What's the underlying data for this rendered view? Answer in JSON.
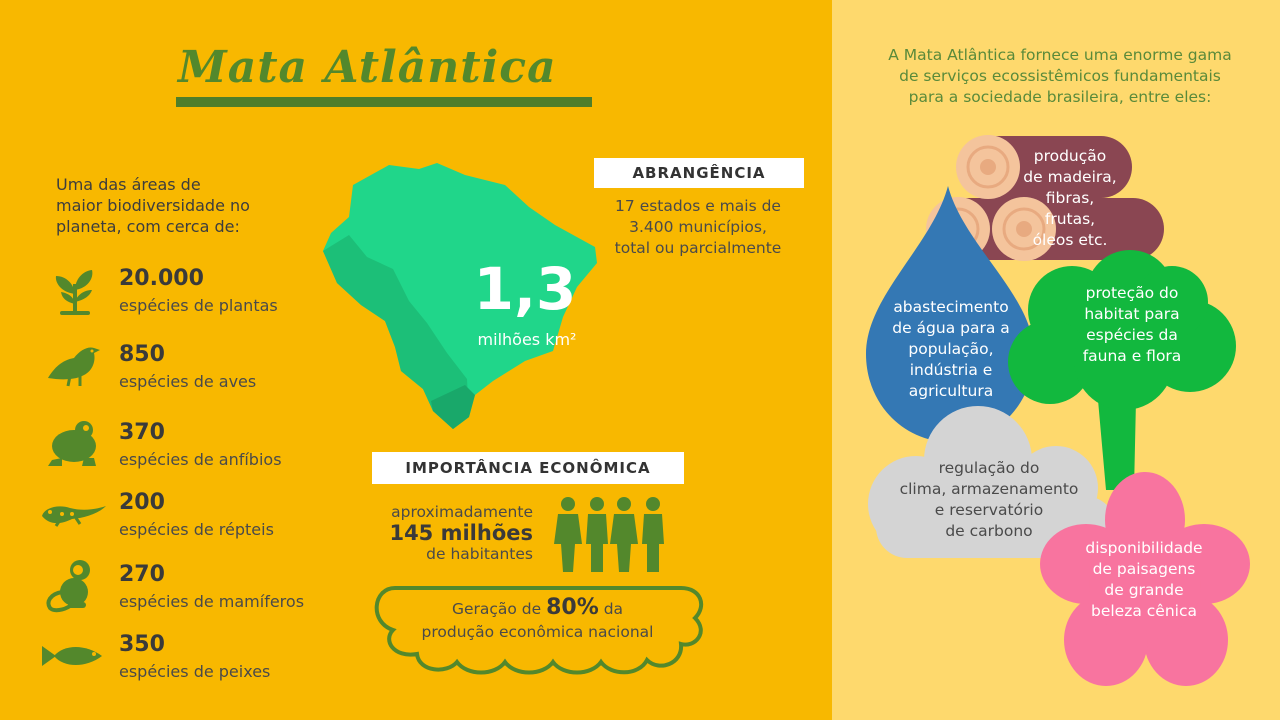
{
  "title": "Mata Atlântica",
  "intro": [
    "Uma das áreas de",
    "maior biodiversidade no",
    "planeta, com cerca de:"
  ],
  "species": [
    {
      "icon": "plant-icon",
      "number": "20.000",
      "label": "espécies de plantas"
    },
    {
      "icon": "bird-icon",
      "number": "850",
      "label": "espécies de aves"
    },
    {
      "icon": "frog-icon",
      "number": "370",
      "label": "espécies de anfíbios"
    },
    {
      "icon": "lizard-icon",
      "number": "200",
      "label": "espécies de répteis"
    },
    {
      "icon": "monkey-icon",
      "number": "270",
      "label": "espécies de mamíferos"
    },
    {
      "icon": "fish-icon",
      "number": "350",
      "label": "espécies de peixes"
    }
  ],
  "map": {
    "number": "1,3",
    "unit": "milhões km²"
  },
  "abrangencia": {
    "heading": "ABRANGÊNCIA",
    "lines": [
      "17 estados e mais de",
      "3.400 municípios,",
      "total ou parcialmente"
    ]
  },
  "economia": {
    "heading": "IMPORTÂNCIA  ECONÔMICA",
    "pop_pre": "aproximadamente",
    "pop_big": "145 milhões",
    "pop_post": "de habitantes",
    "gen_pre": "Geração de",
    "gen_big": "80%",
    "gen_mid": "da",
    "gen_post": "produção econômica nacional"
  },
  "servicos": {
    "intro": [
      "A Mata Atlântica fornece uma enorme gama",
      "de serviços ecossistêmicos fundamentais",
      "para a sociedade brasileira, entre eles:"
    ],
    "madeira": [
      "produção",
      "de madeira,",
      "fibras,",
      "frutas,",
      "óleos etc."
    ],
    "agua": [
      "abastecimento",
      "de água para a",
      "população,",
      "indústria e",
      "agricultura"
    ],
    "habitat": [
      "proteção do",
      "habitat para",
      "espécies da",
      "fauna e flora"
    ],
    "clima": [
      "regulação do",
      "clima, armazenamento",
      "e reservatório",
      "de carbono"
    ],
    "paisagem": [
      "disponibilidade",
      "de paisagens",
      "de grande",
      "beleza cênica"
    ]
  },
  "colors": {
    "left_bg": "#f8b800",
    "right_bg": "#fed96d",
    "green_dark": "#53882c",
    "map_green": "#20d68a",
    "water_blue": "#3478b4",
    "tree_green": "#12b83e",
    "cloud_gray": "#d4d4d4",
    "flower_pink": "#f8749f",
    "log_brown": "#8a4652"
  }
}
